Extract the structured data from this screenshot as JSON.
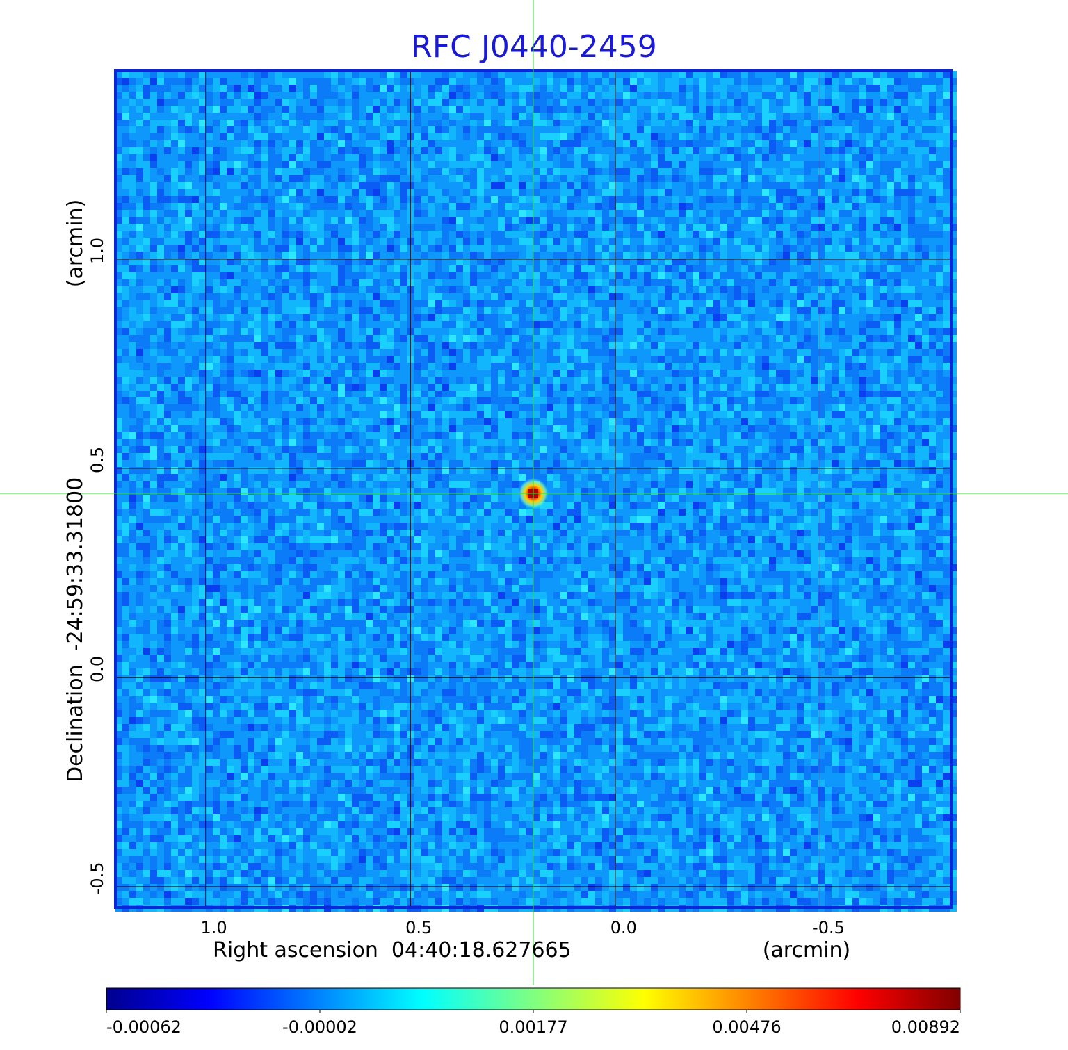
{
  "chart_data": {
    "type": "heatmap",
    "title": "RFC J0440-2459",
    "xlabel": "Right ascension  04:40:18.627665",
    "x_unit": "(arcmin)",
    "ylabel": "Declination  -24:59:33.31800",
    "y_unit": "(arcmin)",
    "xlim": [
      1.22,
      -0.82
    ],
    "ylim": [
      -0.55,
      1.45
    ],
    "x_ticks": [
      1.0,
      0.5,
      0.0,
      -0.5
    ],
    "x_tick_labels": [
      "1.0",
      "0.5",
      "0.0",
      "-0.5"
    ],
    "y_ticks": [
      -0.5,
      0.0,
      0.5,
      1.0
    ],
    "y_tick_labels": [
      "-0.5",
      "0.0",
      "0.5",
      "1.0"
    ],
    "grid": true,
    "crosshair": {
      "x": 0.2,
      "y": 0.44
    },
    "peak": {
      "x": 0.2,
      "y": 0.44,
      "value": 0.00892
    },
    "colorbar": {
      "colormap": "jet",
      "tick_labels": [
        "-0.00062",
        "-0.00002",
        "0.00177",
        "0.00476",
        "0.00892"
      ]
    },
    "colors": {
      "title": "#1a1ad4",
      "frame": "#0a28d8",
      "crosshair": "#33dd33",
      "grid": "#000000"
    }
  }
}
